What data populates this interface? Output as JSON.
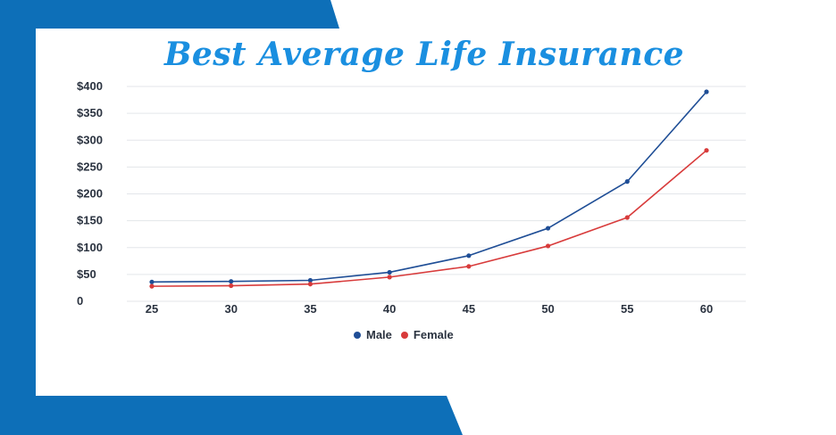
{
  "title": "Best Average Life Insurance",
  "colors": {
    "frame_blue": "#0d6fb8",
    "title_blue": "#1a8fe0",
    "male": "#1f4e96",
    "female": "#d83b3b",
    "grid": "#e3e6ea",
    "tick_text": "#2b3340"
  },
  "chart_data": {
    "type": "line",
    "x": [
      25,
      30,
      35,
      40,
      45,
      50,
      55,
      60
    ],
    "series": [
      {
        "name": "Male",
        "values": [
          36,
          37,
          39,
          54,
          85,
          136,
          223,
          390
        ]
      },
      {
        "name": "Female",
        "values": [
          28,
          29,
          32,
          45,
          65,
          103,
          156,
          281
        ]
      }
    ],
    "ylim": [
      0,
      400
    ],
    "yticks": [
      0,
      50,
      100,
      150,
      200,
      250,
      300,
      350,
      400
    ],
    "ytick_labels": [
      "0",
      "$50",
      "$100",
      "$150",
      "$200",
      "$250",
      "$300",
      "$350",
      "$400"
    ],
    "xtick_labels": [
      "25",
      "30",
      "35",
      "40",
      "45",
      "50",
      "55",
      "60"
    ],
    "grid": true,
    "legend": "bottom-center"
  }
}
